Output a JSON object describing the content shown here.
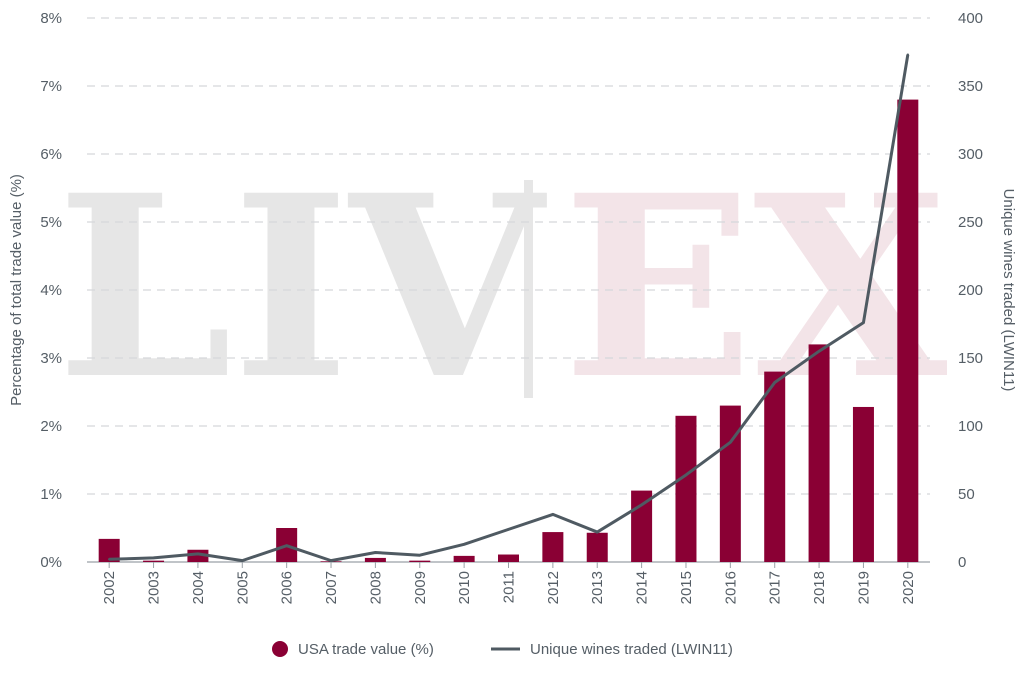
{
  "watermark": {
    "left_text": "LIV",
    "right_text": "EX",
    "left_color": "#e6e6e6",
    "right_color": "#f3e4e8"
  },
  "colors": {
    "bar": "#8a0034",
    "line": "#4f5a62",
    "grid": "#d5d8db",
    "text": "#555e66"
  },
  "chart_data": {
    "type": "bar",
    "categories": [
      "2002",
      "2003",
      "2004",
      "2005",
      "2006",
      "2007",
      "2008",
      "2009",
      "2010",
      "2011",
      "2012",
      "2013",
      "2014",
      "2015",
      "2016",
      "2017",
      "2018",
      "2019",
      "2020"
    ],
    "series": [
      {
        "name": "USA trade value (%)",
        "type": "bar",
        "axis": "left",
        "values": [
          0.34,
          0.02,
          0.18,
          0.0,
          0.5,
          0.01,
          0.06,
          0.02,
          0.09,
          0.11,
          0.44,
          0.43,
          1.05,
          2.15,
          2.3,
          2.8,
          3.2,
          2.28,
          6.8
        ]
      },
      {
        "name": "Unique wines traded (LWIN11)",
        "type": "line",
        "axis": "right",
        "values": [
          2,
          3,
          6,
          1,
          12,
          1,
          7,
          5,
          13,
          24,
          35,
          22,
          42,
          64,
          88,
          132,
          155,
          176,
          373
        ]
      }
    ],
    "y_left": {
      "label": "Percentage of total trade value (%)",
      "lim": [
        0,
        8
      ],
      "ticks": [
        0,
        1,
        2,
        3,
        4,
        5,
        6,
        7,
        8
      ],
      "tick_labels": [
        "0%",
        "1%",
        "2%",
        "3%",
        "4%",
        "5%",
        "6%",
        "7%",
        "8%"
      ]
    },
    "y_right": {
      "label": "Unique wines traded (LWIN11)",
      "lim": [
        0,
        400
      ],
      "ticks": [
        0,
        50,
        100,
        150,
        200,
        250,
        300,
        350,
        400
      ],
      "tick_labels": [
        "0",
        "50",
        "100",
        "150",
        "200",
        "250",
        "300",
        "350",
        "400"
      ]
    },
    "grid": true,
    "legend_position": "bottom-center"
  }
}
